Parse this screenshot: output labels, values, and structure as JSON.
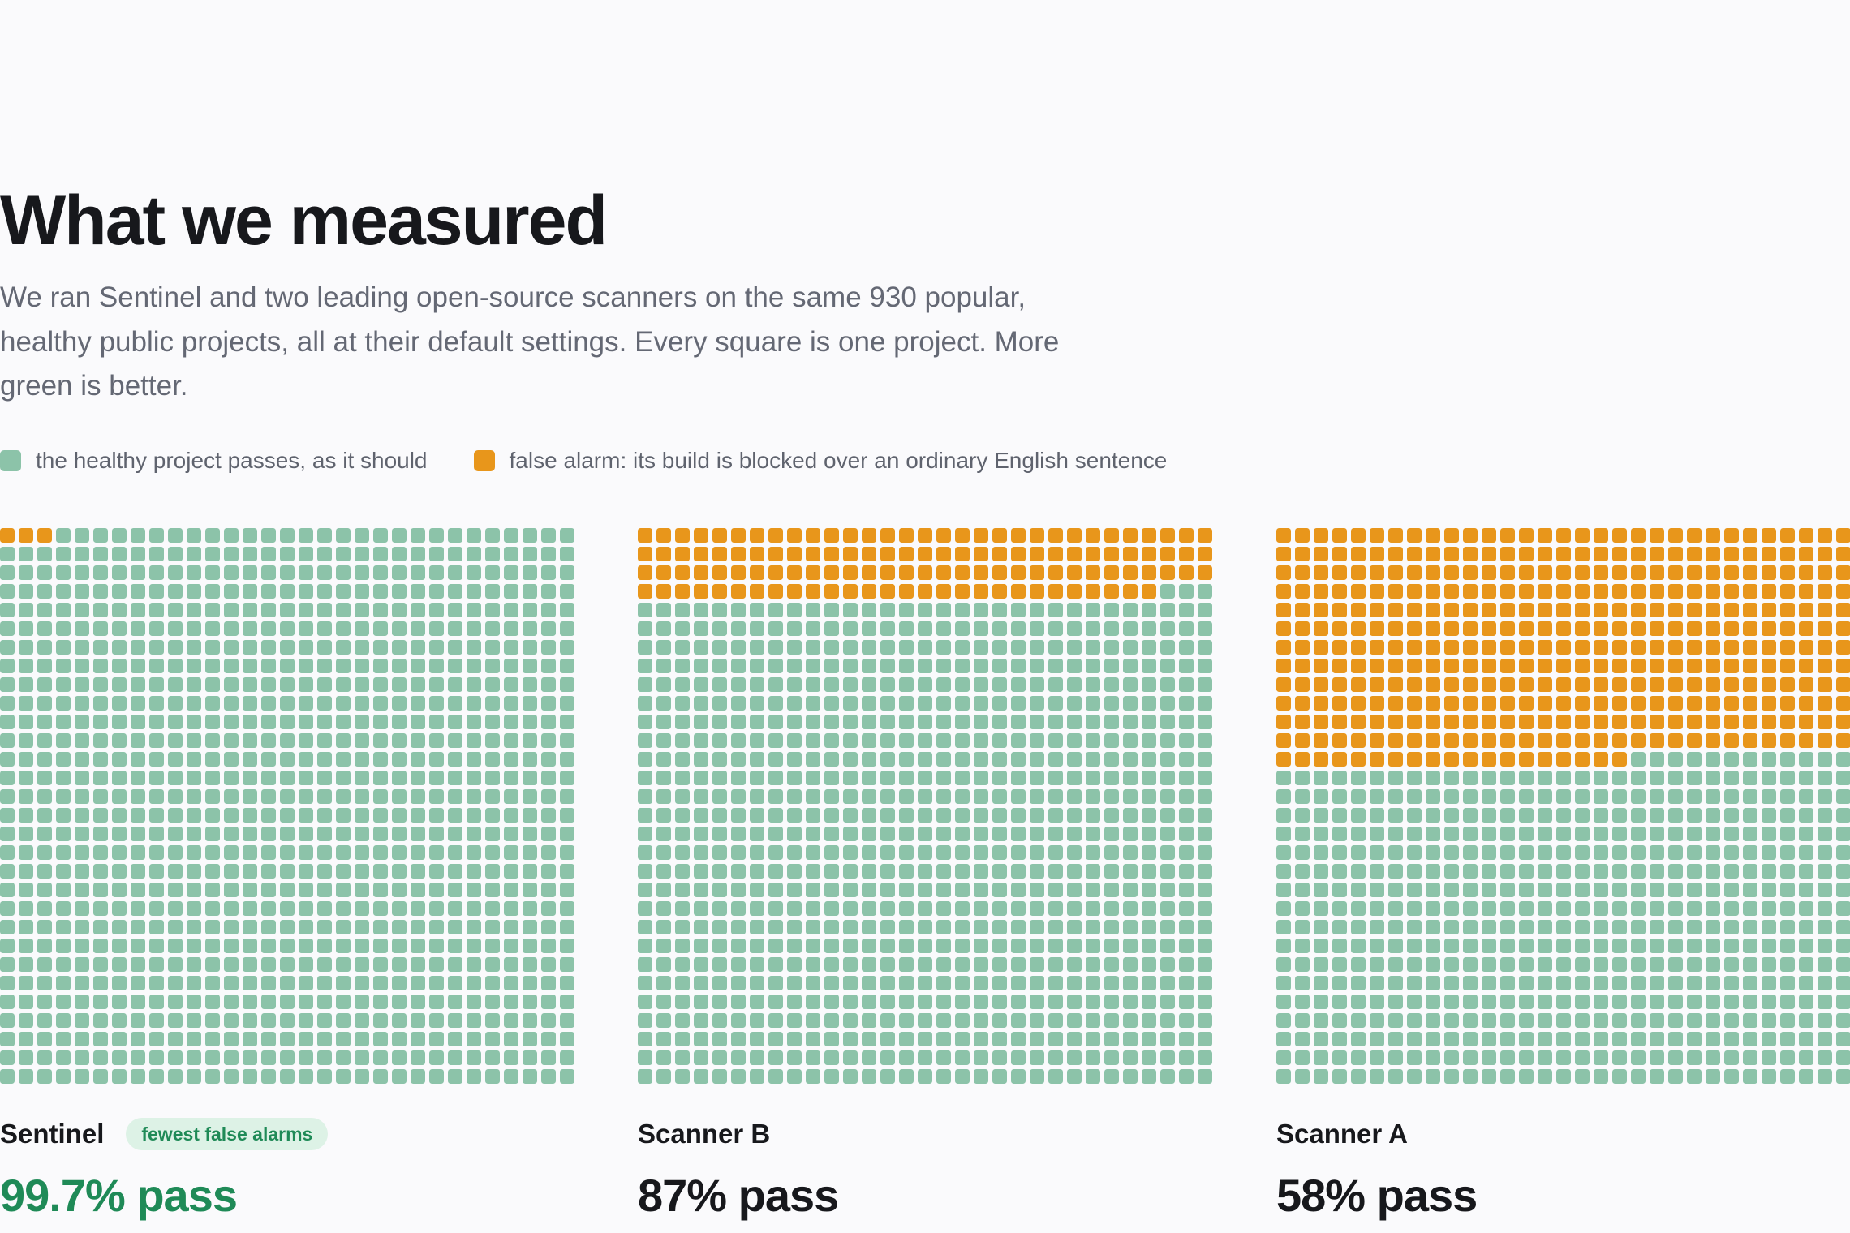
{
  "page": {
    "title": "What we measured",
    "intro": "We ran Sentinel and two leading open-source scanners on the same 930 popular, healthy public projects, all at their default settings. Every square is one project. More green is better."
  },
  "legend": {
    "pass_label": "the healthy project passes, as it should",
    "fail_label": "false alarm: its build is blocked over an ordinary English sentence"
  },
  "colors": {
    "pass": "#8cc3a9",
    "fail": "#e8961b",
    "best_text": "#1f8a57",
    "badge_bg": "#ddf2e6"
  },
  "chart_data": {
    "type": "waffle",
    "total_projects": 930,
    "unit": "one project per square",
    "grid_columns": 31,
    "grid_rows": 30,
    "series": [
      {
        "name": "Sentinel",
        "badge": "fewest false alarms",
        "pass_label": "99.7% pass",
        "pass_rate": 99.7,
        "false_alarms": 3,
        "passes": 927
      },
      {
        "name": "Scanner B",
        "badge": "",
        "pass_label": "87% pass",
        "pass_rate": 87,
        "false_alarms": 121,
        "passes": 809
      },
      {
        "name": "Scanner A",
        "badge": "",
        "pass_label": "58% pass",
        "pass_rate": 58,
        "false_alarms": 391,
        "passes": 539
      }
    ]
  }
}
